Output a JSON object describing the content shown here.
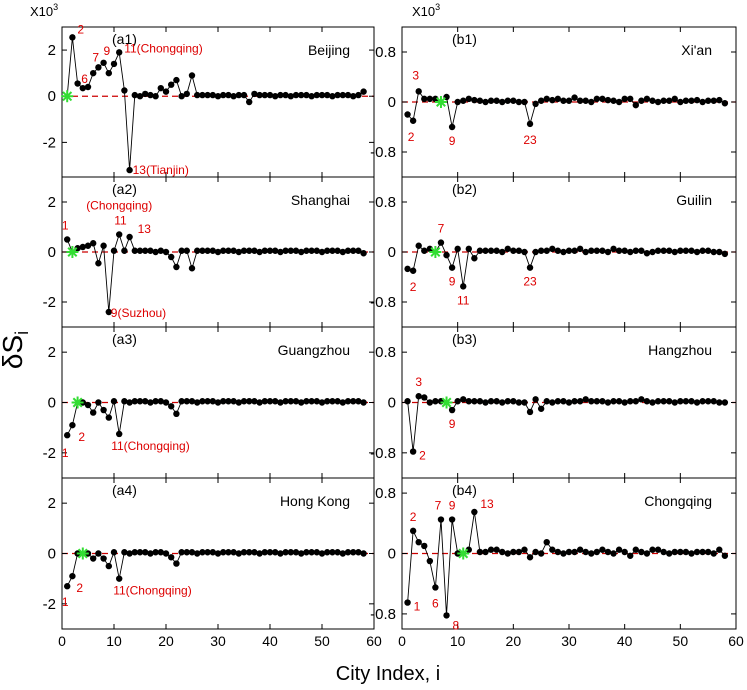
{
  "figure": {
    "ylabel_main": "δS",
    "ylabel_sub": "i",
    "xlabel": "City Index, i",
    "multiplier_left": "X10",
    "multiplier_right": "X10",
    "multiplier_exp": "3"
  },
  "colors": {
    "point": "#000000",
    "line": "#000000",
    "zero_line": "#cc0000",
    "annotation": "#dd0000",
    "self_marker": "#33dd33"
  },
  "chart_data": [
    {
      "id": "a1",
      "type": "line",
      "panel_label": "(a1)",
      "city": "Beijing",
      "xlim": [
        0,
        60
      ],
      "ylim": [
        -3.5,
        3
      ],
      "yticks": [
        2,
        0,
        -2
      ],
      "ytick_labels": [
        "2",
        "0",
        "-2"
      ],
      "xticks": [],
      "xtick_labels": [],
      "self_index": 1,
      "x": [
        2,
        3,
        4,
        5,
        6,
        7,
        8,
        9,
        10,
        11,
        12,
        13,
        14,
        15,
        16,
        17,
        18,
        19,
        20,
        21,
        22,
        23,
        24,
        25,
        26,
        27,
        28,
        29,
        30,
        31,
        32,
        33,
        34,
        35,
        36,
        37,
        38,
        39,
        40,
        41,
        42,
        43,
        44,
        45,
        46,
        47,
        48,
        49,
        50,
        51,
        52,
        53,
        54,
        55,
        56,
        57,
        58
      ],
      "y": [
        2.55,
        0.55,
        0.35,
        0.4,
        1.0,
        1.25,
        1.45,
        1.0,
        1.4,
        1.9,
        0.25,
        -3.2,
        0.05,
        0.0,
        0.1,
        0.05,
        0.0,
        0.35,
        0.2,
        0.5,
        0.7,
        0.0,
        0.1,
        0.9,
        0.05,
        0.05,
        0.05,
        0.05,
        0.0,
        0.05,
        0.05,
        0.0,
        0.05,
        0.05,
        -0.25,
        0.1,
        0.05,
        0.05,
        0.05,
        0.0,
        0.05,
        0.05,
        0.0,
        0.05,
        0.05,
        0.05,
        0.0,
        0.05,
        0.05,
        0.05,
        0.0,
        0.05,
        0.05,
        0.05,
        0.0,
        0.05,
        0.2
      ],
      "annotations": [
        {
          "text": "2",
          "x": 2,
          "y": 2.55
        },
        {
          "text": "6",
          "x": 6,
          "y": 1.0
        },
        {
          "text": "7",
          "x": 7,
          "y": 1.25
        },
        {
          "text": "9",
          "x": 9,
          "y": 1.45
        },
        {
          "text": "11(Chongqing)",
          "x": 11,
          "y": 1.9
        },
        {
          "text": "13(Tianjin)",
          "x": 13,
          "y": -3.2
        }
      ]
    },
    {
      "id": "a2",
      "type": "line",
      "panel_label": "(a2)",
      "city": "Shanghai",
      "xlim": [
        0,
        60
      ],
      "ylim": [
        -3,
        3
      ],
      "yticks": [
        2,
        0,
        -2
      ],
      "ytick_labels": [
        "2",
        "0",
        "-2"
      ],
      "xticks": [],
      "xtick_labels": [],
      "self_index": 2,
      "x": [
        1,
        3,
        4,
        5,
        6,
        7,
        8,
        9,
        10,
        11,
        12,
        13,
        14,
        15,
        16,
        17,
        18,
        19,
        20,
        21,
        22,
        23,
        24,
        25,
        26,
        27,
        28,
        29,
        30,
        31,
        32,
        33,
        34,
        35,
        36,
        37,
        38,
        39,
        40,
        41,
        42,
        43,
        44,
        45,
        46,
        47,
        48,
        49,
        50,
        51,
        52,
        53,
        54,
        55,
        56,
        57,
        58
      ],
      "y": [
        0.5,
        0.15,
        0.2,
        0.25,
        0.35,
        -0.45,
        0.25,
        -2.4,
        0.05,
        0.7,
        0.05,
        0.6,
        0.05,
        0.05,
        0.05,
        0.05,
        0.0,
        0.05,
        0.0,
        -0.2,
        -0.6,
        0.05,
        0.05,
        -0.65,
        0.05,
        0.05,
        0.05,
        0.05,
        0.0,
        0.05,
        0.05,
        0.05,
        0.0,
        0.05,
        0.05,
        0.05,
        0.0,
        0.05,
        0.05,
        0.05,
        0.0,
        0.05,
        0.05,
        0.05,
        0.0,
        0.05,
        0.05,
        0.05,
        0.0,
        0.05,
        0.05,
        0.05,
        0.0,
        0.05,
        0.05,
        0.05,
        -0.05
      ],
      "annotations": [
        {
          "text": "1",
          "x": 1,
          "y": 0.5
        },
        {
          "text": "(Chongqing)",
          "x": 11,
          "y": 0.7
        },
        {
          "text": "11",
          "x": 11,
          "y": 0.7
        },
        {
          "text": "13",
          "x": 13,
          "y": 0.6
        },
        {
          "text": "9(Suzhou)",
          "x": 9,
          "y": -2.4
        }
      ]
    },
    {
      "id": "a3",
      "type": "line",
      "panel_label": "(a3)",
      "city": "Guangzhou",
      "xlim": [
        0,
        60
      ],
      "ylim": [
        -3,
        3
      ],
      "yticks": [
        2,
        0,
        -2
      ],
      "ytick_labels": [
        "2",
        "0",
        "-2"
      ],
      "xticks": [],
      "xtick_labels": [],
      "self_index": 3,
      "x": [
        1,
        2,
        4,
        5,
        6,
        7,
        8,
        9,
        10,
        11,
        12,
        13,
        14,
        15,
        16,
        17,
        18,
        19,
        20,
        21,
        22,
        23,
        24,
        25,
        26,
        27,
        28,
        29,
        30,
        31,
        32,
        33,
        34,
        35,
        36,
        37,
        38,
        39,
        40,
        41,
        42,
        43,
        44,
        45,
        46,
        47,
        48,
        49,
        50,
        51,
        52,
        53,
        54,
        55,
        56,
        57,
        58
      ],
      "y": [
        -1.3,
        -0.9,
        0.0,
        -0.1,
        -0.4,
        0.0,
        -0.3,
        -0.6,
        0.05,
        -1.25,
        0.05,
        0.0,
        0.05,
        0.05,
        0.05,
        0.0,
        0.05,
        0.05,
        0.0,
        -0.15,
        -0.45,
        0.05,
        0.05,
        0.05,
        0.0,
        0.05,
        0.05,
        0.05,
        0.0,
        0.05,
        0.05,
        0.05,
        0.0,
        0.05,
        0.05,
        0.05,
        0.0,
        0.05,
        0.05,
        0.05,
        0.0,
        0.05,
        0.05,
        0.05,
        0.0,
        0.05,
        0.05,
        0.05,
        0.0,
        0.05,
        0.05,
        0.05,
        0.0,
        0.05,
        0.05,
        0.05,
        0.0
      ],
      "annotations": [
        {
          "text": "1",
          "x": 1,
          "y": -1.3
        },
        {
          "text": "2",
          "x": 2,
          "y": -0.9
        },
        {
          "text": "11(Chongqing)",
          "x": 11,
          "y": -1.25
        }
      ]
    },
    {
      "id": "a4",
      "type": "line",
      "panel_label": "(a4)",
      "city": "Hong Kong",
      "xlim": [
        0,
        60
      ],
      "ylim": [
        -3,
        3
      ],
      "yticks": [
        2,
        0,
        -2
      ],
      "ytick_labels": [
        "2",
        "0",
        "-2"
      ],
      "xticks": [
        0,
        10,
        20,
        30,
        40,
        50,
        60
      ],
      "xtick_labels": [
        "0",
        "10",
        "20",
        "30",
        "40",
        "50",
        "60"
      ],
      "self_index": 4,
      "x": [
        1,
        2,
        3,
        5,
        6,
        7,
        8,
        9,
        10,
        11,
        12,
        13,
        14,
        15,
        16,
        17,
        18,
        19,
        20,
        21,
        22,
        23,
        24,
        25,
        26,
        27,
        28,
        29,
        30,
        31,
        32,
        33,
        34,
        35,
        36,
        37,
        38,
        39,
        40,
        41,
        42,
        43,
        44,
        45,
        46,
        47,
        48,
        49,
        50,
        51,
        52,
        53,
        54,
        55,
        56,
        57,
        58
      ],
      "y": [
        -1.3,
        -0.9,
        0.0,
        0.0,
        -0.2,
        0.0,
        -0.2,
        -0.5,
        0.05,
        -1.0,
        0.05,
        0.0,
        0.05,
        0.05,
        0.05,
        0.0,
        0.05,
        0.05,
        0.0,
        -0.15,
        -0.4,
        0.05,
        0.05,
        0.05,
        0.0,
        0.05,
        0.05,
        0.05,
        0.0,
        0.05,
        0.05,
        0.05,
        0.0,
        0.05,
        0.05,
        0.05,
        0.0,
        0.05,
        0.05,
        0.05,
        0.0,
        0.05,
        0.05,
        0.05,
        0.0,
        0.05,
        0.05,
        0.05,
        0.0,
        0.05,
        0.05,
        0.05,
        0.0,
        0.05,
        0.05,
        0.05,
        0.0
      ],
      "annotations": [
        {
          "text": "1",
          "x": 1,
          "y": -1.3
        },
        {
          "text": "2",
          "x": 2,
          "y": -0.9
        },
        {
          "text": "11(Chongqing)",
          "x": 11,
          "y": -1.0
        }
      ]
    },
    {
      "id": "b1",
      "type": "line",
      "panel_label": "(b1)",
      "city": "Xi'an",
      "xlim": [
        0,
        60
      ],
      "ylim": [
        -1.2,
        1.2
      ],
      "yticks": [
        0.8,
        0,
        -0.8
      ],
      "ytick_labels": [
        "0.8",
        "0",
        "-0.8"
      ],
      "xticks": [],
      "xtick_labels": [],
      "self_index": 7,
      "x": [
        1,
        2,
        3,
        4,
        5,
        6,
        8,
        9,
        10,
        11,
        12,
        13,
        14,
        15,
        16,
        17,
        18,
        19,
        20,
        21,
        22,
        23,
        24,
        25,
        26,
        27,
        28,
        29,
        30,
        31,
        32,
        33,
        34,
        35,
        36,
        37,
        38,
        39,
        40,
        41,
        42,
        43,
        44,
        45,
        46,
        47,
        48,
        49,
        50,
        51,
        52,
        53,
        54,
        55,
        56,
        57,
        58
      ],
      "y": [
        -0.2,
        -0.3,
        0.17,
        0.05,
        0.05,
        0.05,
        0.08,
        -0.4,
        0.0,
        0.02,
        0.05,
        0.03,
        0.02,
        0.0,
        0.02,
        0.02,
        0.0,
        0.02,
        0.02,
        0.0,
        0.0,
        -0.35,
        -0.03,
        0.02,
        0.05,
        0.03,
        0.05,
        0.02,
        0.02,
        0.07,
        0.02,
        0.02,
        0.0,
        0.05,
        0.05,
        0.03,
        0.02,
        0.0,
        0.05,
        0.05,
        -0.05,
        0.02,
        0.05,
        0.02,
        0.0,
        0.02,
        0.02,
        0.05,
        0.0,
        0.02,
        0.02,
        0.03,
        0.0,
        0.02,
        0.02,
        0.03,
        -0.02
      ],
      "annotations": [
        {
          "text": "3",
          "x": 3,
          "y": 0.17
        },
        {
          "text": "2",
          "x": 2,
          "y": -0.3
        },
        {
          "text": "9",
          "x": 9,
          "y": -0.4
        },
        {
          "text": "23",
          "x": 23,
          "y": -0.35
        }
      ]
    },
    {
      "id": "b2",
      "type": "line",
      "panel_label": "(b2)",
      "city": "Guilin",
      "xlim": [
        0,
        60
      ],
      "ylim": [
        -1.2,
        1.2
      ],
      "yticks": [
        0.8,
        0,
        -0.8
      ],
      "ytick_labels": [
        "0.8",
        "0",
        "-0.8"
      ],
      "xticks": [],
      "xtick_labels": [],
      "self_index": 6,
      "x": [
        1,
        2,
        3,
        4,
        5,
        7,
        8,
        9,
        10,
        11,
        12,
        13,
        14,
        15,
        16,
        17,
        18,
        19,
        20,
        21,
        22,
        23,
        24,
        25,
        26,
        27,
        28,
        29,
        30,
        31,
        32,
        33,
        34,
        35,
        36,
        37,
        38,
        39,
        40,
        41,
        42,
        43,
        44,
        45,
        46,
        47,
        48,
        49,
        50,
        51,
        52,
        53,
        54,
        55,
        56,
        57,
        58
      ],
      "y": [
        -0.27,
        -0.3,
        0.1,
        0.02,
        0.05,
        0.15,
        -0.05,
        -0.25,
        0.05,
        -0.55,
        0.05,
        -0.1,
        0.02,
        0.02,
        0.02,
        0.02,
        0.0,
        0.05,
        0.02,
        0.02,
        0.0,
        -0.25,
        0.0,
        0.02,
        0.02,
        0.05,
        0.02,
        0.0,
        0.02,
        0.02,
        0.05,
        0.0,
        0.02,
        0.02,
        0.02,
        0.0,
        0.05,
        0.02,
        0.02,
        0.0,
        0.02,
        0.02,
        -0.02,
        0.0,
        0.02,
        0.02,
        0.02,
        0.0,
        0.02,
        0.02,
        0.02,
        0.0,
        0.02,
        0.02,
        0.0,
        0.0,
        -0.03
      ],
      "annotations": [
        {
          "text": "7",
          "x": 7,
          "y": 0.15
        },
        {
          "text": "2",
          "x": 2,
          "y": -0.3
        },
        {
          "text": "9",
          "x": 9,
          "y": -0.25
        },
        {
          "text": "11",
          "x": 11,
          "y": -0.55
        },
        {
          "text": "23",
          "x": 23,
          "y": -0.25
        }
      ]
    },
    {
      "id": "b3",
      "type": "line",
      "panel_label": "(b3)",
      "city": "Hangzhou",
      "xlim": [
        0,
        60
      ],
      "ylim": [
        -1.2,
        1.2
      ],
      "yticks": [
        0.8,
        0,
        -0.8
      ],
      "ytick_labels": [
        "0.8",
        "0",
        "-0.8"
      ],
      "xticks": [],
      "xtick_labels": [],
      "self_index": 8,
      "x": [
        1,
        2,
        3,
        4,
        5,
        6,
        7,
        9,
        10,
        11,
        12,
        13,
        14,
        15,
        16,
        17,
        18,
        19,
        20,
        21,
        22,
        23,
        24,
        25,
        26,
        27,
        28,
        29,
        30,
        31,
        32,
        33,
        34,
        35,
        36,
        37,
        38,
        39,
        40,
        41,
        42,
        43,
        44,
        45,
        46,
        47,
        48,
        49,
        50,
        51,
        52,
        53,
        54,
        55,
        56,
        57,
        58
      ],
      "y": [
        0.02,
        -0.78,
        0.1,
        0.08,
        0.0,
        0.02,
        0.02,
        -0.12,
        0.02,
        0.05,
        0.02,
        0.02,
        0.02,
        0.0,
        0.02,
        0.02,
        0.0,
        0.02,
        0.02,
        0.0,
        0.0,
        -0.15,
        0.05,
        -0.1,
        0.02,
        0.0,
        0.02,
        0.02,
        0.0,
        0.02,
        0.02,
        0.05,
        0.02,
        0.02,
        0.02,
        0.0,
        0.02,
        0.02,
        0.0,
        0.02,
        0.02,
        0.05,
        0.02,
        0.0,
        0.02,
        0.02,
        0.02,
        0.0,
        0.02,
        0.02,
        0.02,
        0.0,
        0.02,
        0.02,
        0.02,
        0.0,
        0.0
      ],
      "annotations": [
        {
          "text": "3",
          "x": 3,
          "y": 0.1
        },
        {
          "text": "2",
          "x": 2,
          "y": -0.78
        },
        {
          "text": "9",
          "x": 9,
          "y": -0.12
        }
      ]
    },
    {
      "id": "b4",
      "type": "line",
      "panel_label": "(b4)",
      "city": "Chongqing",
      "xlim": [
        0,
        60
      ],
      "ylim": [
        -1.0,
        1.0
      ],
      "yticks": [
        0.8,
        0,
        -0.8
      ],
      "ytick_labels": [
        "0.8",
        "0",
        "-0.8"
      ],
      "xticks": [
        0,
        10,
        20,
        30,
        40,
        50,
        60
      ],
      "xtick_labels": [
        "0",
        "10",
        "20",
        "30",
        "40",
        "50",
        "60"
      ],
      "self_index": 11,
      "x": [
        1,
        2,
        3,
        4,
        5,
        6,
        7,
        8,
        9,
        10,
        12,
        13,
        14,
        15,
        16,
        17,
        18,
        19,
        20,
        21,
        22,
        23,
        24,
        25,
        26,
        27,
        28,
        29,
        30,
        31,
        32,
        33,
        34,
        35,
        36,
        37,
        38,
        39,
        40,
        41,
        42,
        43,
        44,
        45,
        46,
        47,
        48,
        49,
        50,
        51,
        52,
        53,
        54,
        55,
        56,
        57,
        58
      ],
      "y": [
        -0.65,
        0.3,
        0.15,
        0.1,
        -0.1,
        -0.45,
        0.45,
        -0.82,
        0.45,
        0.0,
        0.05,
        0.55,
        0.02,
        0.02,
        0.05,
        0.05,
        0.02,
        0.0,
        0.02,
        0.02,
        0.05,
        -0.05,
        0.02,
        0.0,
        0.15,
        0.05,
        0.02,
        0.0,
        0.02,
        0.02,
        0.05,
        0.02,
        0.0,
        0.02,
        0.05,
        0.02,
        0.0,
        0.05,
        0.02,
        -0.03,
        0.05,
        0.02,
        0.0,
        0.05,
        0.05,
        0.02,
        0.0,
        0.02,
        0.02,
        0.02,
        0.0,
        0.02,
        0.02,
        0.02,
        0.0,
        0.05,
        -0.03
      ],
      "annotations": [
        {
          "text": "1",
          "x": 1,
          "y": -0.65
        },
        {
          "text": "2",
          "x": 2,
          "y": 0.3
        },
        {
          "text": "7",
          "x": 7,
          "y": 0.45
        },
        {
          "text": "9",
          "x": 9,
          "y": 0.45
        },
        {
          "text": "13",
          "x": 13,
          "y": 0.55
        },
        {
          "text": "6",
          "x": 6,
          "y": -0.45
        },
        {
          "text": "8",
          "x": 8,
          "y": -0.82
        }
      ]
    }
  ]
}
